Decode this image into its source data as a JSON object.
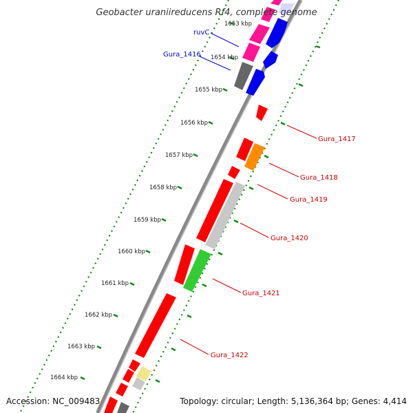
{
  "title": "Geobacter uraniireducens Rf4, complete genome",
  "footer": {
    "accession": "Accession: NC_009483",
    "topology": "Topology: circular; Length: 5,136,364 bp; Genes: 4,414"
  },
  "ticks": [
    "1653 kbp",
    "1654 kbp",
    "1655 kbp",
    "1656 kbp",
    "1657 kbp",
    "1658 kbp",
    "1659 kbp",
    "1660 kbp",
    "1661 kbp",
    "1662 kbp",
    "1663 kbp",
    "1664 kbp"
  ],
  "colors": {
    "label_blue": "#0000cc",
    "label_red": "#cc0000",
    "red": "#ff0000",
    "blue": "#0000ee",
    "magenta": "#ff1493",
    "dark_gray": "#666666",
    "light_gray": "#c8c8c8",
    "orange": "#ff8c00",
    "green": "#33cc33",
    "pale_yellow": "#f0e68c",
    "backbone": "#888888",
    "dots": "#118811"
  },
  "labels": [
    {
      "text": "ruvC",
      "color": "#0000cc"
    },
    {
      "text": "Gura_1416",
      "color": "#0000cc"
    },
    {
      "text": "Gura_1417",
      "color": "#cc0000"
    },
    {
      "text": "Gura_1418",
      "color": "#cc0000"
    },
    {
      "text": "Gura_1419",
      "color": "#cc0000"
    },
    {
      "text": "Gura_1420",
      "color": "#cc0000"
    },
    {
      "text": "Gura_1421",
      "color": "#cc0000"
    },
    {
      "text": "Gura_1422",
      "color": "#cc0000"
    }
  ]
}
